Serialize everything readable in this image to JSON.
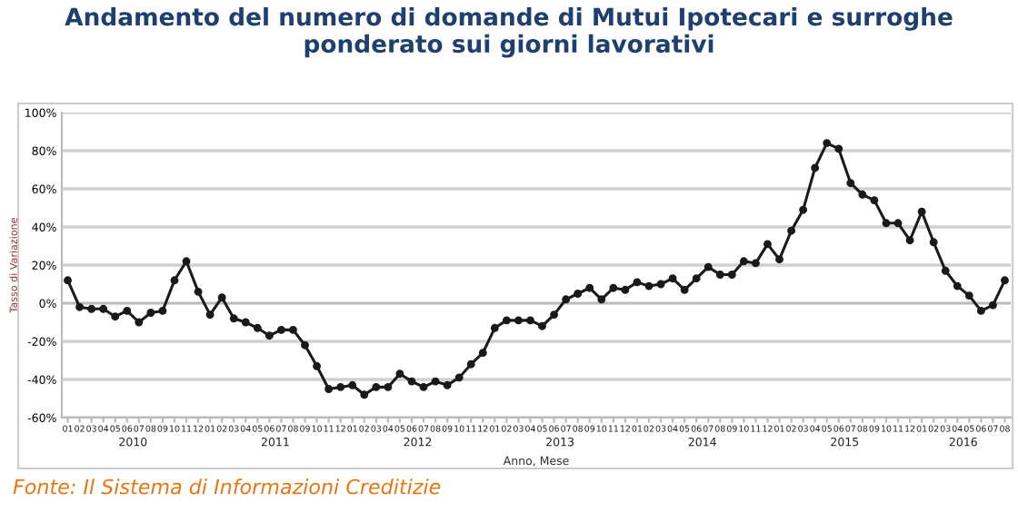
{
  "chart_data": {
    "type": "line",
    "title": "Andamento del numero di domande di Mutui Ipotecari e surroghe ponderato sui giorni lavorativi",
    "xlabel": "Anno, Mese",
    "ylabel": "Tasso di Variazione",
    "categories": [
      "01",
      "02",
      "03",
      "04",
      "05",
      "06",
      "07",
      "08",
      "09",
      "10",
      "11",
      "12",
      "01",
      "02",
      "03",
      "04",
      "05",
      "06",
      "07",
      "08",
      "09",
      "10",
      "11",
      "12",
      "01",
      "02",
      "03",
      "04",
      "05",
      "06",
      "07",
      "08",
      "09",
      "10",
      "11",
      "12",
      "01",
      "02",
      "03",
      "04",
      "05",
      "06",
      "07",
      "08",
      "09",
      "10",
      "11",
      "12",
      "01",
      "02",
      "03",
      "04",
      "05",
      "06",
      "07",
      "08",
      "09",
      "10",
      "11",
      "12",
      "01",
      "02",
      "03",
      "04",
      "05",
      "06",
      "07",
      "08",
      "09",
      "10",
      "11",
      "12",
      "01",
      "02",
      "03",
      "04",
      "05",
      "06",
      "07",
      "08"
    ],
    "series": [
      {
        "color": "#1a1a1a",
        "values": [
          12,
          -2,
          -3,
          -3,
          -7,
          -4,
          -10,
          -5,
          -4,
          12,
          22,
          6,
          -6,
          3,
          -8,
          -10,
          -13,
          -17,
          -14,
          -14,
          -22,
          -33,
          -45,
          -44,
          -43,
          -48,
          -44,
          -44,
          -37,
          -41,
          -44,
          -41,
          -43,
          -39,
          -32,
          -26,
          -13,
          -9,
          -9,
          -9,
          -12,
          -6,
          2,
          5,
          8,
          2,
          8,
          7,
          11,
          9,
          10,
          13,
          7,
          13,
          19,
          15,
          15,
          22,
          21,
          31,
          23,
          38,
          49,
          71,
          84,
          81,
          63,
          57,
          54,
          42,
          42,
          33,
          48,
          32,
          17,
          9,
          4,
          -4,
          -1,
          12
        ]
      }
    ],
    "ylim": [
      -60,
      100
    ],
    "yticks": [
      {
        "value": -60,
        "label": "-60%"
      },
      {
        "value": -40,
        "label": "-40%"
      },
      {
        "value": -20,
        "label": "-20%"
      },
      {
        "value": 0,
        "label": "0%"
      },
      {
        "value": 20,
        "label": "20%"
      },
      {
        "value": 40,
        "label": "40%"
      },
      {
        "value": 60,
        "label": "60%"
      },
      {
        "value": 80,
        "label": "80%"
      },
      {
        "value": 100,
        "label": "100%"
      }
    ],
    "grid": "y",
    "marker": "circle",
    "line_style": "solid",
    "legend": false,
    "annotations": [
      "2010",
      "2011",
      "2012",
      "2013",
      "2014",
      "2015",
      "2016",
      "Fonte: Il Sistema di Informazioni Creditizie"
    ]
  }
}
